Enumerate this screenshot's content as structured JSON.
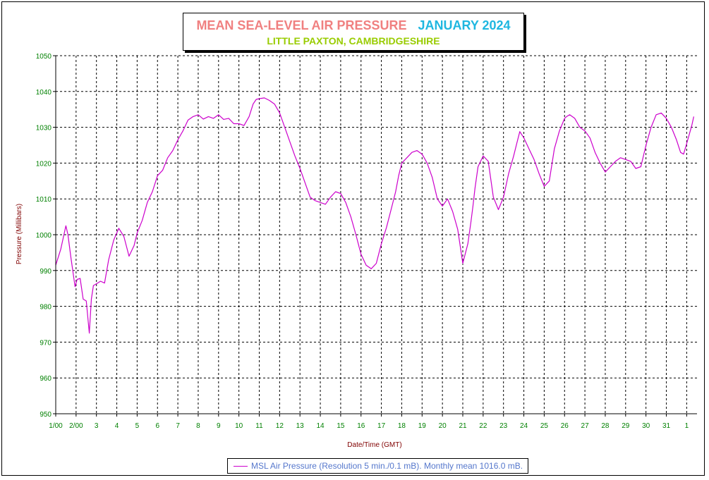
{
  "title": {
    "main": "MEAN SEA-LEVEL AIR PRESSURE",
    "period": "JANUARY 2024",
    "subtitle": "LITTLE PAXTON, CAMBRIDGESHIRE"
  },
  "colors": {
    "main_title": "#f08080",
    "period": "#1fb7e0",
    "subtitle": "#99cc00",
    "line": "#cc00cc",
    "tick_labels": "#008000",
    "axis_labels": "#800000",
    "legend_text": "#5577cc",
    "grid": "#000000"
  },
  "legend": {
    "label": "MSL Air Pressure (Resolution 5 min./0.1 mB). Monthly mean 1016.0 mB."
  },
  "chart_data": {
    "type": "line",
    "xlabel": "Date/Time (GMT)",
    "ylabel": "Pressure (Millibars)",
    "ylim": [
      950,
      1050
    ],
    "y_ticks": [
      950,
      960,
      970,
      980,
      990,
      1000,
      1010,
      1020,
      1030,
      1040,
      1050
    ],
    "xlim": [
      1,
      32
    ],
    "x_ticks": [
      {
        "x": 1,
        "label": "1/00"
      },
      {
        "x": 2,
        "label": "2/00"
      },
      {
        "x": 3,
        "label": "3"
      },
      {
        "x": 4,
        "label": "4"
      },
      {
        "x": 5,
        "label": "5"
      },
      {
        "x": 6,
        "label": "6"
      },
      {
        "x": 7,
        "label": "7"
      },
      {
        "x": 8,
        "label": "8"
      },
      {
        "x": 9,
        "label": "9"
      },
      {
        "x": 10,
        "label": "10"
      },
      {
        "x": 11,
        "label": "11"
      },
      {
        "x": 12,
        "label": "12"
      },
      {
        "x": 13,
        "label": "13"
      },
      {
        "x": 14,
        "label": "14"
      },
      {
        "x": 15,
        "label": "15"
      },
      {
        "x": 16,
        "label": "16"
      },
      {
        "x": 17,
        "label": "17"
      },
      {
        "x": 18,
        "label": "18"
      },
      {
        "x": 19,
        "label": "19"
      },
      {
        "x": 20,
        "label": "20"
      },
      {
        "x": 21,
        "label": "21"
      },
      {
        "x": 22,
        "label": "22"
      },
      {
        "x": 23,
        "label": "23"
      },
      {
        "x": 24,
        "label": "24"
      },
      {
        "x": 25,
        "label": "25"
      },
      {
        "x": 26,
        "label": "26"
      },
      {
        "x": 27,
        "label": "27"
      },
      {
        "x": 28,
        "label": "28"
      },
      {
        "x": 29,
        "label": "29"
      },
      {
        "x": 30,
        "label": "30"
      },
      {
        "x": 31,
        "label": "31"
      },
      {
        "x": 32,
        "label": "1"
      }
    ],
    "grid": true,
    "legend_position": "bottom",
    "series": [
      {
        "name": "MSL Air Pressure (Resolution 5 min./0.1 mB). Monthly mean 1016.0 mB.",
        "x": [
          1.0,
          1.25,
          1.5,
          1.6,
          1.75,
          1.95,
          2.05,
          2.2,
          2.35,
          2.5,
          2.65,
          2.75,
          2.85,
          3.0,
          3.2,
          3.4,
          3.6,
          3.85,
          4.1,
          4.35,
          4.6,
          4.85,
          5.0,
          5.25,
          5.5,
          5.75,
          6.0,
          6.25,
          6.5,
          6.75,
          7.0,
          7.25,
          7.5,
          7.75,
          8.0,
          8.25,
          8.5,
          8.75,
          9.0,
          9.25,
          9.5,
          9.75,
          10.0,
          10.25,
          10.5,
          10.7,
          10.85,
          11.0,
          11.25,
          11.5,
          11.75,
          12.0,
          12.25,
          12.5,
          12.75,
          13.0,
          13.25,
          13.5,
          13.75,
          14.0,
          14.25,
          14.5,
          14.75,
          15.0,
          15.25,
          15.5,
          15.75,
          16.0,
          16.25,
          16.5,
          16.75,
          17.0,
          17.25,
          17.5,
          17.7,
          17.85,
          18.0,
          18.25,
          18.5,
          18.75,
          19.0,
          19.25,
          19.5,
          19.75,
          20.0,
          20.25,
          20.5,
          20.75,
          21.0,
          21.25,
          21.4,
          21.5,
          21.6,
          21.75,
          22.0,
          22.25,
          22.5,
          22.75,
          23.0,
          23.25,
          23.5,
          23.65,
          23.8,
          24.0,
          24.25,
          24.5,
          24.75,
          25.0,
          25.25,
          25.5,
          25.75,
          26.0,
          26.1,
          26.25,
          26.5,
          26.75,
          27.0,
          27.25,
          27.5,
          27.75,
          28.0,
          28.25,
          28.5,
          28.75,
          29.0,
          29.25,
          29.5,
          29.75,
          30.0,
          30.25,
          30.5,
          30.75,
          31.0,
          31.25,
          31.5,
          31.7,
          31.85,
          32.0,
          32.25,
          32.35
        ],
        "values": [
          991.5,
          996.0,
          1002.5,
          1000.0,
          993.5,
          985.5,
          987.5,
          987.8,
          982.0,
          981.5,
          972.5,
          982.0,
          985.8,
          986.3,
          987.0,
          986.5,
          993.0,
          998.5,
          1001.8,
          999.5,
          994.0,
          997.0,
          1000.5,
          1004.0,
          1009.0,
          1012.0,
          1016.5,
          1018.0,
          1021.5,
          1023.5,
          1026.5,
          1029.0,
          1032.0,
          1033.0,
          1033.5,
          1032.3,
          1033.0,
          1032.5,
          1033.5,
          1032.2,
          1032.5,
          1031.0,
          1031.0,
          1030.5,
          1033.0,
          1036.5,
          1037.8,
          1038.0,
          1038.2,
          1037.5,
          1036.5,
          1034.0,
          1030.0,
          1026.0,
          1022.0,
          1018.5,
          1014.5,
          1010.5,
          1009.5,
          1009.0,
          1008.5,
          1010.5,
          1012.0,
          1011.5,
          1009.0,
          1005.0,
          1000.0,
          994.5,
          991.5,
          990.5,
          992.0,
          997.5,
          1002.0,
          1007.5,
          1012.0,
          1016.5,
          1020.0,
          1021.5,
          1023.0,
          1023.5,
          1022.5,
          1020.0,
          1016.0,
          1010.0,
          1008.0,
          1010.0,
          1006.5,
          1001.5,
          992.0,
          997.5,
          1003.5,
          1008.0,
          1013.0,
          1019.0,
          1022.0,
          1020.5,
          1010.5,
          1007.0,
          1010.5,
          1017.0,
          1022.0,
          1025.5,
          1028.8,
          1027.0,
          1024.0,
          1021.0,
          1017.0,
          1013.5,
          1015.0,
          1024.0,
          1029.0,
          1032.5,
          1033.0,
          1033.5,
          1032.5,
          1030.0,
          1029.0,
          1027.0,
          1023.0,
          1020.0,
          1017.5,
          1019.0,
          1020.5,
          1021.5,
          1021.0,
          1020.5,
          1018.5,
          1019.0,
          1025.0,
          1030.0,
          1033.5,
          1034.0,
          1032.5,
          1030.0,
          1026.5,
          1023.0,
          1022.5,
          1025.5,
          1030.5,
          1033.0
        ]
      }
    ]
  }
}
